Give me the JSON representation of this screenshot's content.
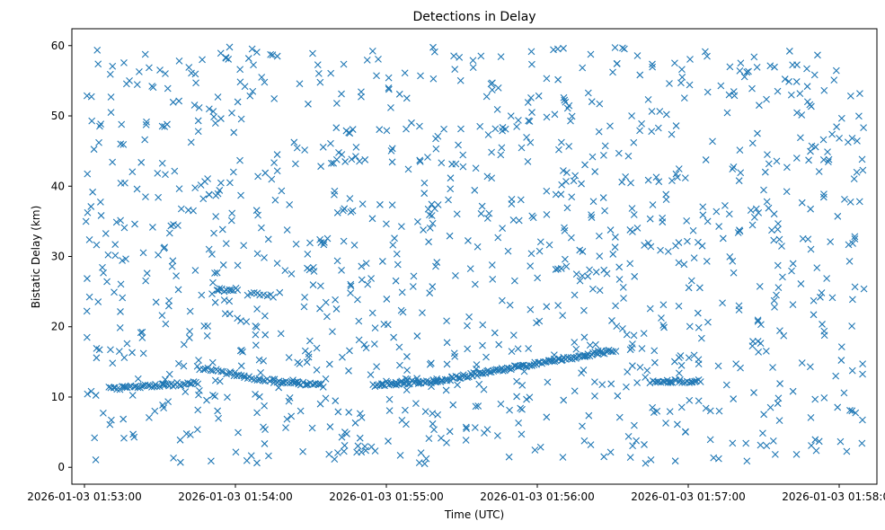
{
  "chart_data": {
    "type": "scatter",
    "title": "Detections in Delay",
    "xlabel": "Time (UTC)",
    "ylabel": "Bistatic Delay (km)",
    "marker": "x",
    "color": "#1f77b4",
    "grid": false,
    "x_unit": "time",
    "x_domain": [
      "2026-01-03 01:52:55",
      "2026-01-03 01:58:15"
    ],
    "ylim": [
      -2.4,
      62.4
    ],
    "x_ticks": [
      "2026-01-03 01:53:00",
      "2026-01-03 01:54:00",
      "2026-01-03 01:55:00",
      "2026-01-03 01:56:00",
      "2026-01-03 01:57:00",
      "2026-01-03 01:58:00"
    ],
    "y_ticks": [
      0,
      10,
      20,
      30,
      40,
      50,
      60
    ],
    "time_start": "2026-01-03 01:53:00",
    "time_end": "2026-01-03 01:58:10",
    "noise_count": 1150,
    "noise_seed": 20260103,
    "tracks": [
      {
        "start": "2026-01-03 01:53:10",
        "end": "2026-01-03 01:53:45",
        "from_km": 11.2,
        "to_km": 12.0,
        "count": 45
      },
      {
        "start": "2026-01-03 01:53:45",
        "end": "2026-01-03 01:54:15",
        "from_km": 14.2,
        "to_km": 12.2,
        "count": 30
      },
      {
        "start": "2026-01-03 01:54:15",
        "end": "2026-01-03 01:54:35",
        "from_km": 12.3,
        "to_km": 11.6,
        "count": 28
      },
      {
        "start": "2026-01-03 01:54:55",
        "end": "2026-01-03 01:55:20",
        "from_km": 11.7,
        "to_km": 12.3,
        "count": 34
      },
      {
        "start": "2026-01-03 01:55:20",
        "end": "2026-01-03 01:56:30",
        "from_km": 12.3,
        "to_km": 16.6,
        "count": 110
      },
      {
        "start": "2026-01-03 01:56:45",
        "end": "2026-01-03 01:57:05",
        "from_km": 12.2,
        "to_km": 12.3,
        "count": 26
      },
      {
        "start": "2026-01-03 01:53:53",
        "end": "2026-01-03 01:54:01",
        "from_km": 25.2,
        "to_km": 25.4,
        "count": 10
      },
      {
        "start": "2026-01-03 01:54:05",
        "end": "2026-01-03 01:54:15",
        "from_km": 24.7,
        "to_km": 24.4,
        "count": 9
      },
      {
        "start": "2026-01-03 01:54:58",
        "end": "2026-01-03 01:55:12",
        "from_km": 12.0,
        "to_km": 12.6,
        "count": 8
      }
    ]
  }
}
